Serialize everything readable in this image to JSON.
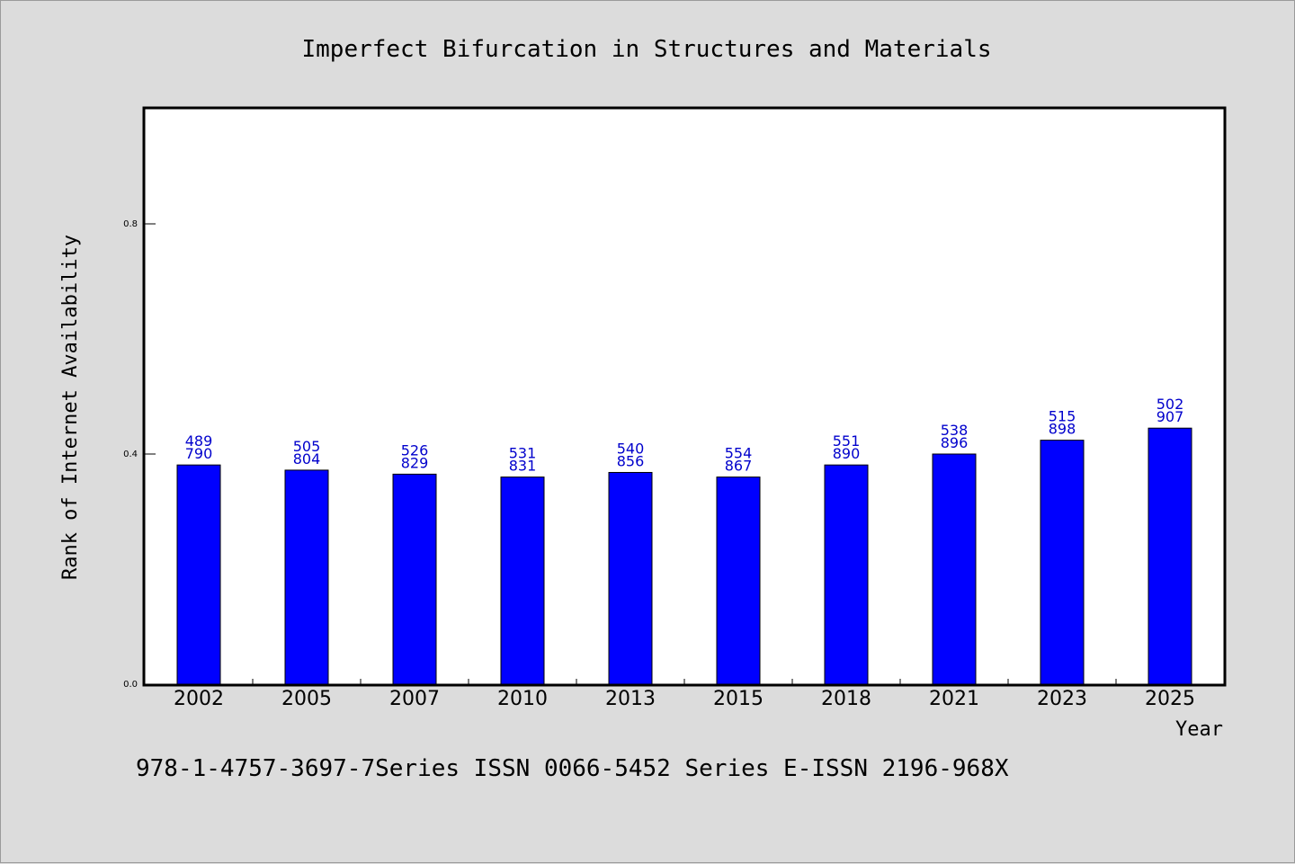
{
  "chart_data": {
    "type": "bar",
    "title": "Imperfect Bifurcation in Structures and Materials",
    "xlabel": "Year",
    "ylabel": "Rank of Internet Availability",
    "ylim": [
      0,
      1.0
    ],
    "yticks": [
      0.0,
      0.4,
      0.8
    ],
    "ytick_labels": [
      "0.0",
      "0.4",
      "0.8"
    ],
    "categories": [
      "2002",
      "2005",
      "2007",
      "2010",
      "2013",
      "2015",
      "2018",
      "2021",
      "2023",
      "2025"
    ],
    "values": [
      0.381,
      0.372,
      0.365,
      0.36,
      0.368,
      0.36,
      0.381,
      0.4,
      0.424,
      0.445
    ],
    "data_labels": [
      [
        "489",
        "790"
      ],
      [
        "505",
        "804"
      ],
      [
        "526",
        "829"
      ],
      [
        "531",
        "831"
      ],
      [
        "540",
        "856"
      ],
      [
        "554",
        "867"
      ],
      [
        "551",
        "890"
      ],
      [
        "538",
        "896"
      ],
      [
        "515",
        "898"
      ],
      [
        "502",
        "907"
      ]
    ],
    "bar_color": "#0000ff",
    "label_color": "#0000cc",
    "grid": false,
    "legend": "none"
  },
  "footer": "978-1-4757-3697-7Series ISSN 0066-5452 Series E-ISSN 2196-968X"
}
